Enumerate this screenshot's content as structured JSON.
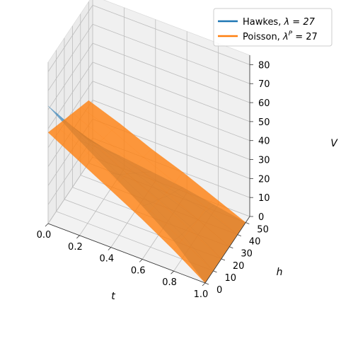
{
  "chart_data": {
    "type": "surface3d",
    "axes": {
      "x": {
        "label": "t",
        "range": [
          0,
          1
        ],
        "ticks": [
          "0.0",
          "0.2",
          "0.4",
          "0.6",
          "0.8",
          "1.0"
        ]
      },
      "y": {
        "label": "h",
        "range": [
          0,
          55
        ],
        "ticks": [
          "0",
          "10",
          "20",
          "30",
          "40",
          "50"
        ]
      },
      "z": {
        "label": "V",
        "range": [
          0,
          85
        ],
        "ticks": [
          "0",
          "10",
          "20",
          "30",
          "40",
          "50",
          "60",
          "70",
          "80"
        ]
      }
    },
    "grid": true,
    "legend_position": "top-right",
    "series": [
      {
        "name": "Hawkes, λ = 27",
        "legend_main": "Hawkes, ",
        "legend_math": "λ = 27",
        "color": "#1f77b4",
        "t": [
          0.0,
          0.2,
          0.4,
          0.6,
          0.8,
          1.0
        ],
        "h": [
          0,
          10,
          20,
          30,
          40,
          50
        ],
        "V": [
          [
            62,
            52,
            42,
            32,
            22,
            12
          ],
          [
            50,
            42,
            34,
            26,
            18,
            10
          ],
          [
            39,
            32,
            26,
            20,
            14,
            8
          ],
          [
            28,
            23,
            19,
            14,
            10,
            6
          ],
          [
            16,
            13,
            11,
            8,
            6,
            3
          ],
          [
            0,
            0,
            0,
            0,
            0,
            0
          ]
        ]
      },
      {
        "name": "Poisson, λ^P = 27",
        "legend_main": "Poisson, ",
        "legend_math": "λ",
        "legend_sup": "P",
        "legend_tail": " = 27",
        "color": "#ff7f0e",
        "t": [
          0.0,
          0.2,
          0.4,
          0.6,
          0.8,
          1.0
        ],
        "h": [
          0,
          10,
          20,
          30,
          40,
          50
        ],
        "V": [
          [
            48,
            45,
            42,
            39,
            36,
            33
          ],
          [
            39,
            37,
            35,
            32,
            30,
            27
          ],
          [
            30,
            28,
            26,
            24,
            22,
            20
          ],
          [
            21,
            19,
            18,
            16,
            15,
            14
          ],
          [
            11,
            10,
            9,
            8,
            8,
            7
          ],
          [
            0,
            0,
            0,
            0,
            0,
            0
          ]
        ]
      }
    ]
  }
}
